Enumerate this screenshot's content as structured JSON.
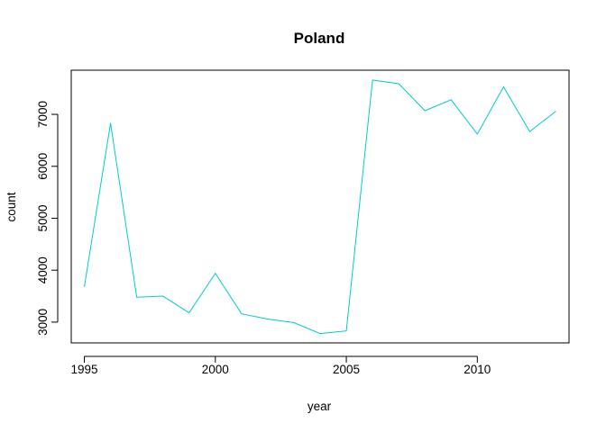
{
  "chart_data": {
    "type": "line",
    "title": "Poland",
    "xlabel": "year",
    "ylabel": "count",
    "xlim": [
      1994.5,
      2013.5
    ],
    "ylim": [
      2600,
      7850
    ],
    "x_ticks": [
      1995,
      2000,
      2005,
      2010
    ],
    "y_ticks": [
      3000,
      4000,
      5000,
      6000,
      7000
    ],
    "grid": false,
    "series": [
      {
        "color": "#00CDCD",
        "x": [
          1995,
          1996,
          1997,
          1998,
          1999,
          2000,
          2001,
          2002,
          2003,
          2004,
          2005,
          2006,
          2007,
          2008,
          2009,
          2010,
          2011,
          2012,
          2013
        ],
        "y": [
          3680,
          6830,
          3480,
          3500,
          3180,
          3940,
          3160,
          3060,
          2990,
          2780,
          2830,
          7660,
          7590,
          7070,
          7280,
          6620,
          7530,
          6670,
          7060
        ]
      }
    ]
  }
}
